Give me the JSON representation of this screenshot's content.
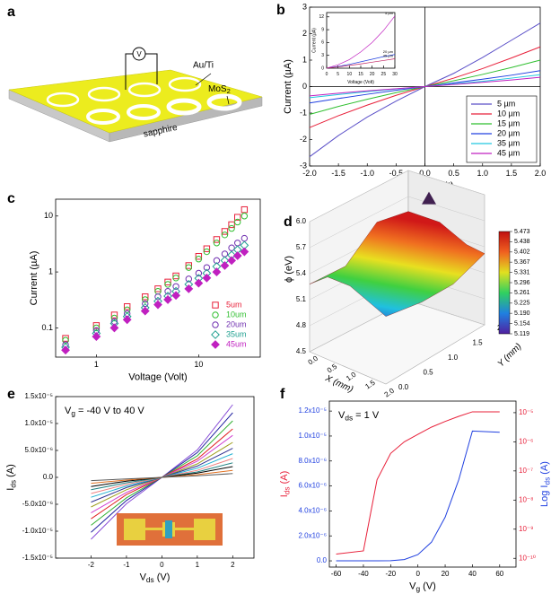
{
  "diagram": {
    "panel": "a",
    "electrode_label": "Au/Ti",
    "film_label": [
      "MoS",
      {
        "sub": "2"
      }
    ],
    "substrate_label": "sapphire",
    "meter_label": "V"
  },
  "chart_data": [
    {
      "type": "line",
      "panel": "b",
      "xlabel": "Voltage (volt)",
      "ylabel": "Current (µA)",
      "x": [
        -2,
        -1.5,
        -1,
        -0.5,
        0,
        0.5,
        1,
        1.5,
        2
      ],
      "xlim": [
        -2,
        2
      ],
      "ylim": [
        -3,
        3
      ],
      "xticks": [
        {
          "value": -2,
          "label": "-2.0"
        },
        {
          "value": -1.5,
          "label": "-1.5"
        },
        {
          "value": -1,
          "label": "-1.0"
        },
        {
          "value": -0.5,
          "label": "-0.5"
        },
        {
          "value": 0,
          "label": "0.0"
        },
        {
          "value": 0.5,
          "label": "0.5"
        },
        {
          "value": 1,
          "label": "1.0"
        },
        {
          "value": 1.5,
          "label": "1.5"
        },
        {
          "value": 2,
          "label": "2.0"
        }
      ],
      "yticks": [
        -3,
        -2,
        -1,
        0,
        1,
        2,
        3
      ],
      "zero_axes": true,
      "legend": "lower right",
      "series": [
        {
          "name": "5 µm",
          "color": "#5a4fc8",
          "values": [
            -2.65,
            -1.85,
            -1.15,
            -0.55,
            0,
            0.5,
            1.1,
            1.75,
            2.4
          ]
        },
        {
          "name": "10 µm",
          "color": "#e8203a",
          "values": [
            -1.55,
            -1.1,
            -0.7,
            -0.33,
            0,
            0.32,
            0.68,
            1.08,
            1.5
          ]
        },
        {
          "name": "15 µm",
          "color": "#2fbf2f",
          "values": [
            -1.05,
            -0.75,
            -0.48,
            -0.23,
            0,
            0.22,
            0.46,
            0.72,
            1.0
          ]
        },
        {
          "name": "20 µm",
          "color": "#2040e0",
          "values": [
            -0.62,
            -0.45,
            -0.29,
            -0.14,
            0,
            0.14,
            0.28,
            0.43,
            0.6
          ]
        },
        {
          "name": "35 µm",
          "color": "#20c8e0",
          "values": [
            -0.42,
            -0.3,
            -0.19,
            -0.09,
            0,
            0.1,
            0.2,
            0.32,
            0.45
          ]
        },
        {
          "name": "45 µm",
          "color": "#c020c0",
          "values": [
            -0.35,
            -0.25,
            -0.16,
            -0.08,
            0,
            0.08,
            0.16,
            0.25,
            0.35
          ]
        }
      ]
    },
    {
      "type": "line",
      "xlabel": "Voltage (Volt)",
      "ylabel": "Current (µA)",
      "x": [
        0,
        5,
        10,
        15,
        20,
        25,
        30
      ],
      "xlim": [
        0,
        30
      ],
      "ylim": [
        0,
        13
      ],
      "xticks": [
        0,
        5,
        10,
        15,
        20,
        25,
        30
      ],
      "yticks": [
        0,
        3,
        6,
        9,
        12
      ],
      "end_labels": true,
      "series": [
        {
          "name": "5 µm",
          "color": "#c020c0",
          "values": [
            0,
            0.8,
            2,
            3.8,
            6,
            8.8,
            12.2
          ]
        },
        {
          "name": "20 µm",
          "color": "#2040e0",
          "values": [
            0,
            0.4,
            0.9,
            1.5,
            2.1,
            2.7,
            3.2
          ]
        },
        {
          "name": "45 µm",
          "color": "#c02060",
          "values": [
            0,
            0.3,
            0.65,
            1.0,
            1.4,
            1.8,
            2.2
          ]
        }
      ]
    },
    {
      "type": "scatter",
      "panel": "c",
      "xlabel": "Voltage (Volt)",
      "ylabel": "Current (µA)",
      "xlog": true,
      "ylog": true,
      "xlim": [
        0.4,
        40
      ],
      "ylim": [
        0.03,
        20
      ],
      "xticks": [
        1,
        10
      ],
      "yticks": [
        0.1,
        1,
        10
      ],
      "legend": "lower right",
      "x": [
        0.5,
        1,
        1.5,
        2,
        3,
        4,
        5,
        6,
        8,
        10,
        12,
        15,
        18,
        21,
        24,
        28
      ],
      "series": [
        {
          "name": "5um",
          "color": "#e8203a",
          "marker": "square",
          "values": [
            0.065,
            0.11,
            0.17,
            0.24,
            0.36,
            0.5,
            0.66,
            0.85,
            1.3,
            1.9,
            2.6,
            3.8,
            5.3,
            7.0,
            9.5,
            13
          ]
        },
        {
          "name": "10um",
          "color": "#2fbf2f",
          "marker": "circle",
          "values": [
            0.06,
            0.1,
            0.15,
            0.21,
            0.32,
            0.45,
            0.6,
            0.78,
            1.2,
            1.7,
            2.3,
            3.3,
            4.6,
            6.0,
            7.8,
            10
          ]
        },
        {
          "name": "20um",
          "color": "#7030b0",
          "marker": "circle",
          "values": [
            0.05,
            0.09,
            0.13,
            0.18,
            0.27,
            0.36,
            0.45,
            0.55,
            0.75,
            0.95,
            1.2,
            1.6,
            2.1,
            2.7,
            3.3,
            4.0
          ]
        },
        {
          "name": "35um",
          "color": "#20a090",
          "marker": "diamond",
          "values": [
            0.045,
            0.08,
            0.12,
            0.16,
            0.23,
            0.3,
            0.37,
            0.45,
            0.6,
            0.77,
            0.95,
            1.25,
            1.6,
            2.0,
            2.5,
            3.0
          ]
        },
        {
          "name": "45um",
          "color": "#c020c0",
          "marker": "diamond",
          "filled": true,
          "values": [
            0.04,
            0.07,
            0.1,
            0.14,
            0.2,
            0.26,
            0.32,
            0.38,
            0.5,
            0.63,
            0.78,
            1.0,
            1.3,
            1.6,
            1.95,
            2.3
          ]
        }
      ]
    },
    {
      "type": "surface",
      "panel": "d",
      "xlabel": "X (mm)",
      "ylabel": "Y (mm)",
      "zlabel": "ϕ (eV)",
      "xlim": [
        0,
        2
      ],
      "ylim": [
        0,
        2
      ],
      "zlim": [
        4.5,
        6
      ],
      "xticks": [
        {
          "value": 0,
          "label": "0.0"
        },
        0.5,
        {
          "value": 1,
          "label": "1.0"
        },
        1.5,
        {
          "value": 2,
          "label": "2.0"
        }
      ],
      "yticks": [
        {
          "value": 0,
          "label": "0.0"
        },
        0.5,
        {
          "value": 1,
          "label": "1.0"
        },
        1.5,
        {
          "value": 2,
          "label": "2.0"
        }
      ],
      "zticks": [
        4.5,
        4.8,
        5.1,
        5.4,
        5.7,
        {
          "value": 6,
          "label": "6.0"
        }
      ],
      "clim": [
        5.119,
        5.473
      ],
      "cticks": [
        5.119,
        5.154,
        {
          "value": 5.19,
          "label": "5.190"
        },
        5.225,
        5.261,
        5.296,
        5.331,
        5.367,
        5.402,
        5.438,
        5.473
      ]
    },
    {
      "type": "line",
      "panel": "e",
      "xlabel": [
        "V",
        {
          "sub": "ds"
        },
        " (V)"
      ],
      "ylabel": [
        "I",
        {
          "sub": "ds"
        },
        " (A)"
      ],
      "annotation": [
        "V",
        {
          "sub": "g"
        },
        " = -40 V to 40 V"
      ],
      "x": [
        -2,
        -1,
        0,
        1,
        2
      ],
      "xlim": [
        -3,
        2.6
      ],
      "ylim": [
        -1.5e-05,
        1.5e-05
      ],
      "xticks": [
        -2,
        -1,
        0,
        1,
        2
      ],
      "yticks": [
        {
          "value": -1.5e-05,
          "label": "-1.5x10⁻⁵"
        },
        {
          "value": -1e-05,
          "label": "-1.0x10⁻⁵"
        },
        {
          "value": -5e-06,
          "label": "-5.0x10⁻⁶"
        },
        {
          "value": 0,
          "label": "0.0"
        },
        {
          "value": 5e-06,
          "label": "5.0x10⁻⁶"
        },
        {
          "value": 1e-05,
          "label": "1.0x10⁻⁵"
        },
        {
          "value": 1.5e-05,
          "label": "1.5x10⁻⁵"
        }
      ],
      "series": [
        {
          "color": "#8a4fd8",
          "values": [
            -1.15e-05,
            -4.9e-06,
            0,
            5.1e-06,
            1.35e-05
          ]
        },
        {
          "color": "#2020a0",
          "values": [
            -1.02e-05,
            -4.3e-06,
            0,
            4.6e-06,
            1.2e-05
          ]
        },
        {
          "color": "#30b030",
          "values": [
            -8.9e-06,
            -3.8e-06,
            0,
            4e-06,
            1.05e-05
          ]
        },
        {
          "color": "#e02020",
          "values": [
            -7.7e-06,
            -3.2e-06,
            0,
            3.4e-06,
            9e-06
          ]
        },
        {
          "color": "#d040d0",
          "values": [
            -6.6e-06,
            -2.8e-06,
            0,
            3e-06,
            7.8e-06
          ]
        },
        {
          "color": "#a0a020",
          "values": [
            -5.5e-06,
            -2.3e-06,
            0,
            2.5e-06,
            6.5e-06
          ]
        },
        {
          "color": "#303090",
          "values": [
            -4.6e-06,
            -1.9e-06,
            0,
            2.1e-06,
            5.4e-06
          ]
        },
        {
          "color": "#20b0d0",
          "values": [
            -3.7e-06,
            -1.6e-06,
            0,
            1.7e-06,
            4.4e-06
          ]
        },
        {
          "color": "#f08080",
          "values": [
            -3e-06,
            -1.3e-06,
            0,
            1.3e-06,
            3.5e-06
          ]
        },
        {
          "color": "#208080",
          "values": [
            -2.3e-06,
            -1e-06,
            0,
            1e-06,
            2.7e-06
          ]
        },
        {
          "color": "#000000",
          "values": [
            -1.7e-06,
            -7e-07,
            0,
            8e-07,
            2e-06
          ]
        },
        {
          "color": "#e07020",
          "values": [
            -1.1e-06,
            -5e-07,
            0,
            5e-07,
            1.3e-06
          ]
        },
        {
          "color": "#606060",
          "values": [
            -6e-07,
            -3e-07,
            0,
            3e-07,
            7e-07
          ]
        }
      ]
    },
    {
      "type": "line",
      "panel": "f",
      "xlabel": [
        "V",
        {
          "sub": "g"
        },
        " (V)"
      ],
      "ylabel": [
        "I",
        {
          "sub": "ds"
        },
        " (A)"
      ],
      "y2label": [
        "Log I",
        {
          "sub": "ds"
        },
        " (A)"
      ],
      "annotation": [
        "V",
        {
          "sub": "ds"
        },
        " = 1 V"
      ],
      "ylabel_color": "#e8203a",
      "y2label_color": "#2040e0",
      "ytick_color": "#2040e0",
      "y2tick_color": "#e8203a",
      "x": [
        -60,
        -40,
        -35,
        -30,
        -20,
        -10,
        0,
        10,
        20,
        30,
        40,
        60
      ],
      "xlim": [
        -65,
        72
      ],
      "ylim": [
        -5e-07,
        1.28e-05
      ],
      "y2lim": [
        5e-11,
        2.5e-05
      ],
      "y2log": true,
      "xticks": [
        -60,
        -40,
        -20,
        0,
        20,
        40,
        60
      ],
      "yticks": [
        {
          "value": 0,
          "label": "0.0"
        },
        {
          "value": 2e-06,
          "label": "2.0x10⁻⁶"
        },
        {
          "value": 4e-06,
          "label": "4.0x10⁻⁶"
        },
        {
          "value": 6e-06,
          "label": "6.0x10⁻⁶"
        },
        {
          "value": 8e-06,
          "label": "8.0x10⁻⁶"
        },
        {
          "value": 1e-05,
          "label": "1.0x10⁻⁵"
        },
        {
          "value": 1.2e-05,
          "label": "1.2x10⁻⁵"
        }
      ],
      "y2ticks": [
        {
          "value": 1e-10,
          "label": "10⁻¹⁰"
        },
        {
          "value": 1e-09,
          "label": "10⁻⁹"
        },
        {
          "value": 1e-08,
          "label": "10⁻⁸"
        },
        {
          "value": 1e-07,
          "label": "10⁻⁷"
        },
        {
          "value": 1e-06,
          "label": "10⁻⁶"
        },
        {
          "value": 1e-05,
          "label": "10⁻⁵"
        }
      ],
      "series": [
        {
          "color": "#2040e0",
          "values": [
            0,
            0,
            0,
            0,
            1e-08,
            1e-07,
            5e-07,
            1.5e-06,
            3.5e-06,
            6.5e-06,
            1.04e-05,
            1.03e-05
          ]
        },
        {
          "color": "#e8203a",
          "axis": "y2",
          "values": [
            1.4e-10,
            1.8e-10,
            3e-09,
            5e-08,
            4e-07,
            1e-06,
            1.8e-06,
            3.2e-06,
            5e-06,
            7.5e-06,
            1.07e-05,
            1.07e-05
          ]
        }
      ]
    }
  ]
}
